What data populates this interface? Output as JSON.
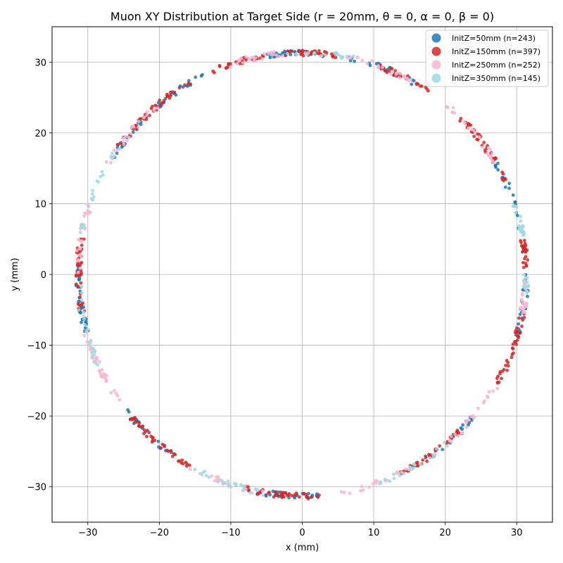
{
  "chart_data": {
    "type": "scatter",
    "title": "Muon XY Distribution at Target Side (r = 20mm, θ = 0, α = 0, β = 0)",
    "xlabel": "x (mm)",
    "ylabel": "y (mm)",
    "xlim": [
      -35,
      35
    ],
    "ylim": [
      -35,
      35
    ],
    "xticks": [
      -30,
      -20,
      -10,
      0,
      10,
      20,
      30
    ],
    "yticks": [
      -30,
      -20,
      -10,
      0,
      10,
      20,
      30
    ],
    "xtick_labels": [
      "−30",
      "−20",
      "−10",
      "0",
      "10",
      "20",
      "30"
    ],
    "ytick_labels": [
      "−30",
      "−20",
      "−10",
      "0",
      "10",
      "20",
      "30"
    ],
    "grid": true,
    "legend_position": "top-right",
    "ring_radius_approx": 31.3,
    "series": [
      {
        "name": "InitZ=50mm (n=243)",
        "color": "#1f77b4",
        "count": 243,
        "clusters": [
          {
            "angle_deg": [
              60,
              78
            ],
            "weight": 2
          },
          {
            "angle_deg": [
              85,
              100
            ],
            "weight": 3
          },
          {
            "angle_deg": [
              115,
              130
            ],
            "weight": 2
          },
          {
            "angle_deg": [
              135,
              150
            ],
            "weight": 2
          },
          {
            "angle_deg": [
              175,
              195
            ],
            "weight": 3
          },
          {
            "angle_deg": [
              215,
              235
            ],
            "weight": 2
          },
          {
            "angle_deg": [
              255,
              275
            ],
            "weight": 3
          },
          {
            "angle_deg": [
              300,
              320
            ],
            "weight": 2
          },
          {
            "angle_deg": [
              340,
              360
            ],
            "weight": 2
          },
          {
            "angle_deg": [
              5,
              30
            ],
            "weight": 2
          }
        ]
      },
      {
        "name": "InitZ=150mm (n=397)",
        "color": "#d62728",
        "count": 397,
        "clusters": [
          {
            "angle_deg": [
              25,
              45
            ],
            "weight": 3
          },
          {
            "angle_deg": [
              55,
              70
            ],
            "weight": 2
          },
          {
            "angle_deg": [
              80,
              95
            ],
            "weight": 3
          },
          {
            "angle_deg": [
              100,
              115
            ],
            "weight": 2
          },
          {
            "angle_deg": [
              120,
              145
            ],
            "weight": 3
          },
          {
            "angle_deg": [
              170,
              190
            ],
            "weight": 3
          },
          {
            "angle_deg": [
              220,
              240
            ],
            "weight": 3
          },
          {
            "angle_deg": [
              255,
              275
            ],
            "weight": 3
          },
          {
            "angle_deg": [
              295,
              315
            ],
            "weight": 3
          },
          {
            "angle_deg": [
              330,
              350
            ],
            "weight": 3
          },
          {
            "angle_deg": [
              0,
              10
            ],
            "weight": 2
          }
        ]
      },
      {
        "name": "InitZ=250mm (n=252)",
        "color": "#f7b6d2",
        "count": 252,
        "clusters": [
          {
            "angle_deg": [
              30,
              50
            ],
            "weight": 2
          },
          {
            "angle_deg": [
              60,
              80
            ],
            "weight": 2
          },
          {
            "angle_deg": [
              95,
              110
            ],
            "weight": 2
          },
          {
            "angle_deg": [
              130,
              150
            ],
            "weight": 2
          },
          {
            "angle_deg": [
              160,
              180
            ],
            "weight": 2
          },
          {
            "angle_deg": [
              195,
              215
            ],
            "weight": 3
          },
          {
            "angle_deg": [
              240,
              260
            ],
            "weight": 2
          },
          {
            "angle_deg": [
              280,
              300
            ],
            "weight": 2
          },
          {
            "angle_deg": [
              310,
              330
            ],
            "weight": 2
          },
          {
            "angle_deg": [
              350,
              360
            ],
            "weight": 2
          }
        ]
      },
      {
        "name": "InitZ=350mm (n=145)",
        "color": "#9edae5",
        "count": 145,
        "clusters": [
          {
            "angle_deg": [
              10,
              20
            ],
            "weight": 2
          },
          {
            "angle_deg": [
              75,
              95
            ],
            "weight": 2
          },
          {
            "angle_deg": [
              145,
              170
            ],
            "weight": 2
          },
          {
            "angle_deg": [
              180,
              205
            ],
            "weight": 2
          },
          {
            "angle_deg": [
              240,
              260
            ],
            "weight": 2
          },
          {
            "angle_deg": [
              290,
              310
            ],
            "weight": 2
          },
          {
            "angle_deg": [
              355,
              360
            ],
            "weight": 1
          }
        ]
      }
    ]
  }
}
